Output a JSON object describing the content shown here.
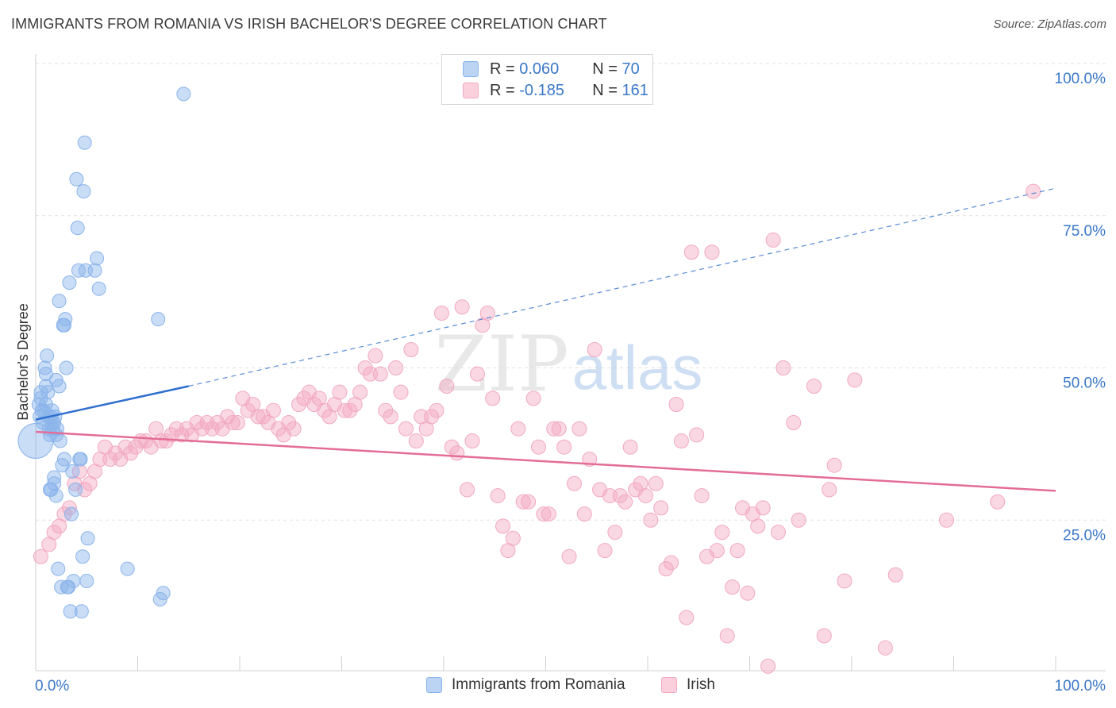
{
  "title": "IMMIGRANTS FROM ROMANIA VS IRISH BACHELOR'S DEGREE CORRELATION CHART",
  "source": "Source: ZipAtlas.com",
  "watermark": {
    "zip": "ZIP",
    "atlas": "atlas"
  },
  "legend_top": [
    {
      "r_label": "R =",
      "r_value": "0.060",
      "n_label": "N =",
      "n_value": "70",
      "color": "#8ab4ea"
    },
    {
      "r_label": "R =",
      "r_value": "-0.185",
      "n_label": "N =",
      "n_value": "161",
      "color": "#f2a8c0"
    }
  ],
  "legend_bottom": [
    {
      "label": "Immigrants from Romania",
      "color": "#8ab4ea"
    },
    {
      "label": "Irish",
      "color": "#f2a8c0"
    }
  ],
  "chart_data": {
    "type": "scatter",
    "ylabel": "Bachelor's Degree",
    "xlim": [
      0,
      100
    ],
    "ylim": [
      0,
      100
    ],
    "x_tick_labels": [
      "0.0%",
      "100.0%"
    ],
    "y_ticks": [
      25,
      50,
      75,
      100
    ],
    "y_tick_labels": [
      "25.0%",
      "50.0%",
      "75.0%",
      "100.0%"
    ],
    "colors": {
      "romania": "#8ab4ea",
      "irish": "#f2a8c0",
      "romania_line": "#2f6fcf",
      "irish_line": "#e36d98"
    },
    "series": [
      {
        "name": "Immigrants from Romania",
        "trend": {
          "x": [
            0,
            15
          ],
          "y": [
            41.5,
            47.0
          ],
          "dashed_to": [
            100,
            79.5
          ]
        },
        "points": [
          [
            0.0,
            38
          ],
          [
            0.3,
            44
          ],
          [
            0.5,
            46
          ],
          [
            0.5,
            45
          ],
          [
            0.6,
            43
          ],
          [
            0.7,
            41
          ],
          [
            0.8,
            43
          ],
          [
            0.9,
            50
          ],
          [
            1.0,
            47
          ],
          [
            1.0,
            49
          ],
          [
            1.1,
            52
          ],
          [
            1.2,
            46
          ],
          [
            1.2,
            42
          ],
          [
            1.3,
            40
          ],
          [
            1.4,
            39
          ],
          [
            1.5,
            42
          ],
          [
            1.6,
            43
          ],
          [
            1.7,
            40
          ],
          [
            1.8,
            41
          ],
          [
            1.9,
            42
          ],
          [
            2.0,
            39
          ],
          [
            2.1,
            40
          ],
          [
            2.3,
            47
          ],
          [
            2.4,
            38
          ],
          [
            1.5,
            30
          ],
          [
            1.4,
            30
          ],
          [
            1.8,
            31
          ],
          [
            1.8,
            32
          ],
          [
            2.0,
            29
          ],
          [
            2.2,
            17
          ],
          [
            2.3,
            61
          ],
          [
            2.5,
            14
          ],
          [
            2.6,
            34
          ],
          [
            2.7,
            57
          ],
          [
            2.8,
            57
          ],
          [
            2.9,
            58
          ],
          [
            3.0,
            50
          ],
          [
            3.1,
            14
          ],
          [
            3.2,
            14
          ],
          [
            3.3,
            64
          ],
          [
            3.4,
            10
          ],
          [
            3.5,
            26
          ],
          [
            3.6,
            33
          ],
          [
            3.7,
            15
          ],
          [
            4.0,
            81
          ],
          [
            4.1,
            73
          ],
          [
            4.2,
            66
          ],
          [
            4.3,
            35
          ],
          [
            4.5,
            10
          ],
          [
            4.6,
            19
          ],
          [
            4.7,
            79
          ],
          [
            4.8,
            87
          ],
          [
            4.9,
            66
          ],
          [
            5.0,
            15
          ],
          [
            5.1,
            22
          ],
          [
            5.8,
            66
          ],
          [
            6.0,
            68
          ],
          [
            6.2,
            63
          ],
          [
            9.0,
            17
          ],
          [
            12.0,
            58
          ],
          [
            12.2,
            12
          ],
          [
            12.5,
            13
          ],
          [
            14.5,
            95
          ],
          [
            2.0,
            48
          ],
          [
            1.0,
            44
          ],
          [
            0.4,
            42
          ],
          [
            1.6,
            41
          ],
          [
            2.8,
            35
          ],
          [
            3.9,
            30
          ],
          [
            4.4,
            35
          ]
        ]
      },
      {
        "name": "Irish",
        "trend": {
          "x": [
            0,
            100
          ],
          "y": [
            39.5,
            29.8
          ]
        },
        "points": [
          [
            0.5,
            19
          ],
          [
            1.3,
            21
          ],
          [
            1.8,
            23
          ],
          [
            2.3,
            24
          ],
          [
            2.8,
            26
          ],
          [
            3.3,
            27
          ],
          [
            3.8,
            31
          ],
          [
            4.3,
            33
          ],
          [
            4.8,
            30
          ],
          [
            5.3,
            31
          ],
          [
            5.8,
            33
          ],
          [
            6.3,
            35
          ],
          [
            6.8,
            37
          ],
          [
            7.3,
            35
          ],
          [
            7.8,
            36
          ],
          [
            8.3,
            35
          ],
          [
            8.8,
            37
          ],
          [
            9.3,
            36
          ],
          [
            9.8,
            37
          ],
          [
            10.3,
            38
          ],
          [
            10.8,
            38
          ],
          [
            11.3,
            37
          ],
          [
            11.8,
            40
          ],
          [
            12.3,
            38
          ],
          [
            12.8,
            38
          ],
          [
            13.3,
            39
          ],
          [
            13.8,
            40
          ],
          [
            14.3,
            39
          ],
          [
            14.8,
            40
          ],
          [
            15.3,
            39
          ],
          [
            15.8,
            41
          ],
          [
            16.3,
            40
          ],
          [
            16.8,
            41
          ],
          [
            17.3,
            40
          ],
          [
            17.8,
            41
          ],
          [
            18.3,
            40
          ],
          [
            18.8,
            42
          ],
          [
            19.3,
            41
          ],
          [
            19.8,
            41
          ],
          [
            20.3,
            45
          ],
          [
            20.8,
            43
          ],
          [
            21.3,
            44
          ],
          [
            21.8,
            42
          ],
          [
            22.3,
            42
          ],
          [
            22.8,
            41
          ],
          [
            23.3,
            43
          ],
          [
            23.8,
            40
          ],
          [
            24.3,
            39
          ],
          [
            24.8,
            41
          ],
          [
            25.3,
            40
          ],
          [
            25.8,
            44
          ],
          [
            26.3,
            45
          ],
          [
            26.8,
            46
          ],
          [
            27.3,
            44
          ],
          [
            27.8,
            45
          ],
          [
            28.3,
            43
          ],
          [
            28.8,
            42
          ],
          [
            29.3,
            44
          ],
          [
            29.8,
            46
          ],
          [
            30.3,
            43
          ],
          [
            30.8,
            43
          ],
          [
            31.3,
            44
          ],
          [
            31.8,
            46
          ],
          [
            32.3,
            50
          ],
          [
            32.8,
            49
          ],
          [
            33.3,
            52
          ],
          [
            33.8,
            49
          ],
          [
            34.3,
            43
          ],
          [
            34.8,
            42
          ],
          [
            35.3,
            50
          ],
          [
            35.8,
            46
          ],
          [
            36.3,
            40
          ],
          [
            36.8,
            53
          ],
          [
            37.3,
            38
          ],
          [
            37.8,
            42
          ],
          [
            38.3,
            40
          ],
          [
            38.8,
            42
          ],
          [
            39.3,
            43
          ],
          [
            39.8,
            59
          ],
          [
            40.3,
            47
          ],
          [
            40.8,
            37
          ],
          [
            41.3,
            36
          ],
          [
            41.8,
            60
          ],
          [
            42.3,
            30
          ],
          [
            42.8,
            38
          ],
          [
            43.3,
            49
          ],
          [
            43.8,
            57
          ],
          [
            44.3,
            59
          ],
          [
            44.8,
            45
          ],
          [
            45.3,
            29
          ],
          [
            45.8,
            24
          ],
          [
            46.3,
            20
          ],
          [
            46.8,
            22
          ],
          [
            47.3,
            40
          ],
          [
            47.8,
            28
          ],
          [
            48.3,
            28
          ],
          [
            48.8,
            45
          ],
          [
            49.3,
            37
          ],
          [
            49.8,
            26
          ],
          [
            50.3,
            26
          ],
          [
            50.8,
            40
          ],
          [
            51.3,
            40
          ],
          [
            51.8,
            37
          ],
          [
            52.3,
            19
          ],
          [
            52.8,
            31
          ],
          [
            53.3,
            40
          ],
          [
            53.8,
            26
          ],
          [
            54.3,
            35
          ],
          [
            54.8,
            53
          ],
          [
            55.3,
            30
          ],
          [
            55.8,
            20
          ],
          [
            56.3,
            29
          ],
          [
            56.8,
            23
          ],
          [
            57.3,
            29
          ],
          [
            57.8,
            28
          ],
          [
            58.3,
            37
          ],
          [
            58.8,
            30
          ],
          [
            59.3,
            31
          ],
          [
            59.8,
            29
          ],
          [
            60.3,
            25
          ],
          [
            60.8,
            31
          ],
          [
            61.3,
            27
          ],
          [
            61.8,
            17
          ],
          [
            62.3,
            18
          ],
          [
            62.8,
            44
          ],
          [
            63.3,
            38
          ],
          [
            63.8,
            9
          ],
          [
            64.3,
            69
          ],
          [
            64.8,
            39
          ],
          [
            65.3,
            29
          ],
          [
            65.8,
            19
          ],
          [
            66.3,
            69
          ],
          [
            66.8,
            20
          ],
          [
            67.3,
            23
          ],
          [
            67.8,
            6
          ],
          [
            68.3,
            14
          ],
          [
            68.8,
            20
          ],
          [
            69.3,
            27
          ],
          [
            69.8,
            13
          ],
          [
            70.3,
            26
          ],
          [
            70.8,
            24
          ],
          [
            71.3,
            27
          ],
          [
            71.8,
            1
          ],
          [
            72.3,
            71
          ],
          [
            72.8,
            23
          ],
          [
            73.3,
            50
          ],
          [
            74.3,
            41
          ],
          [
            74.8,
            25
          ],
          [
            76.3,
            47
          ],
          [
            77.3,
            6
          ],
          [
            77.8,
            30
          ],
          [
            78.3,
            34
          ],
          [
            79.3,
            15
          ],
          [
            80.3,
            48
          ],
          [
            83.3,
            4
          ],
          [
            84.3,
            16
          ],
          [
            89.3,
            25
          ],
          [
            94.3,
            28
          ],
          [
            97.8,
            79
          ]
        ]
      }
    ]
  }
}
